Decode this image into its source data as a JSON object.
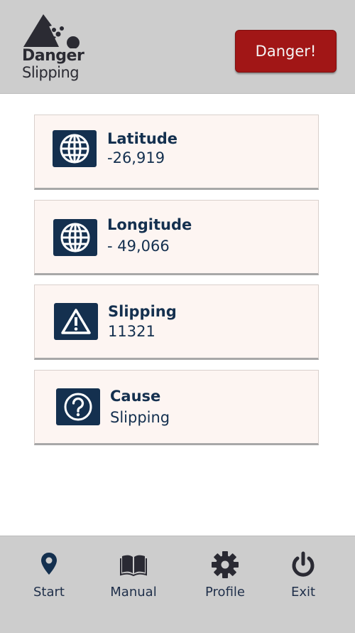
{
  "header": {
    "logo_title": "Danger",
    "logo_subtitle": "Slipping",
    "alert_button": "Danger!"
  },
  "cards": [
    {
      "label": "Latitude",
      "value": "-26,919",
      "icon": "globe-icon"
    },
    {
      "label": "Longitude",
      "value": "- 49,066",
      "icon": "globe-icon"
    },
    {
      "label": "Slipping",
      "value": "11321",
      "icon": "warning-icon"
    },
    {
      "label": "Cause",
      "value": "Slipping",
      "icon": "question-icon"
    }
  ],
  "nav": [
    {
      "label": "Start",
      "icon": "map-pin-icon"
    },
    {
      "label": "Manual",
      "icon": "book-icon"
    },
    {
      "label": "Profile",
      "icon": "gear-icon"
    },
    {
      "label": "Exit",
      "icon": "power-icon"
    }
  ],
  "colors": {
    "header_bg": "#cdcdcd",
    "danger": "#a11616",
    "card_bg": "#fdf5f2",
    "icon_bg": "#14304f",
    "text_primary": "#14304f"
  }
}
